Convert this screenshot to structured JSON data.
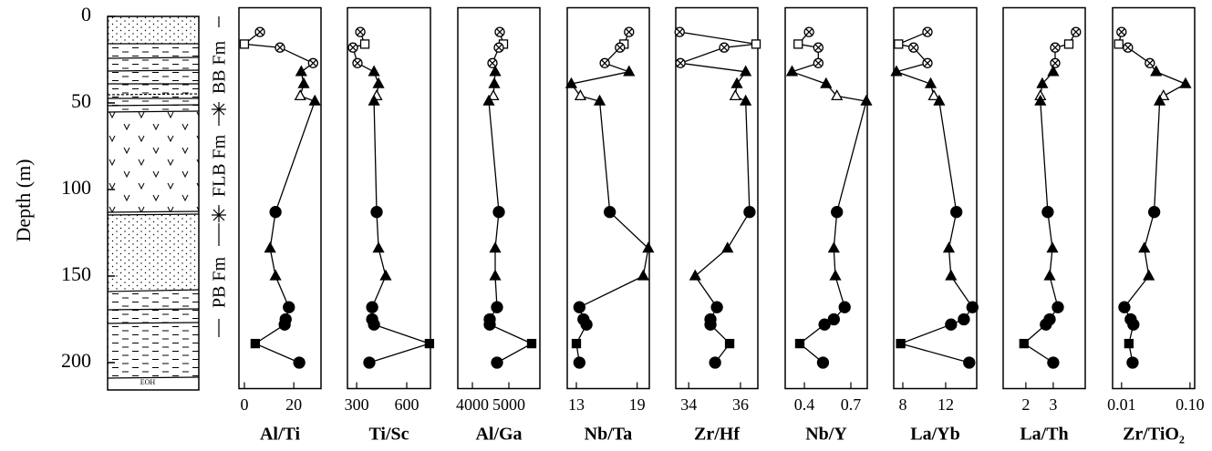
{
  "chart_data": [
    {
      "type": "line",
      "xlabel": "Al/Ti",
      "ylabel": "Depth (m)",
      "ylim": [
        -5,
        215
      ],
      "yticks": [
        0,
        50,
        100,
        150,
        200
      ],
      "xlim": [
        -2.2,
        31
      ],
      "xticks": [
        0,
        20
      ],
      "markers": [
        "circle-x",
        "square-open",
        "circle-x",
        "circle-x",
        "triangle",
        "triangle",
        "triangle-open",
        "triangle",
        "circle",
        "triangle",
        "triangle",
        "circle",
        "circle",
        "circle",
        "square",
        "circle"
      ],
      "y": [
        9,
        16,
        18,
        27,
        32,
        39,
        46,
        49,
        113,
        134,
        150,
        168,
        175,
        178,
        189,
        200
      ],
      "x": [
        6.3,
        0,
        14.4,
        27.8,
        23,
        24,
        22.6,
        28.5,
        12.6,
        10.4,
        12.6,
        18,
        16.7,
        16.3,
        4.4,
        22.2
      ]
    },
    {
      "type": "line",
      "xlabel": "Ti/Sc",
      "ylim": [
        -5,
        215
      ],
      "xlim": [
        245,
        742
      ],
      "xticks": [
        300,
        600
      ],
      "markers": [
        "circle-x",
        "square-open",
        "circle-x",
        "circle-x",
        "triangle",
        "triangle",
        "triangle-open",
        "triangle",
        "circle",
        "triangle",
        "triangle",
        "circle",
        "circle",
        "circle",
        "square",
        "circle"
      ],
      "y": [
        9,
        16,
        18,
        27,
        32,
        39,
        46,
        49,
        113,
        134,
        150,
        168,
        175,
        178,
        189,
        200
      ],
      "x": [
        322,
        349,
        278,
        305,
        404,
        431,
        420,
        404,
        420,
        431,
        474,
        393,
        393,
        404,
        736,
        376
      ]
    },
    {
      "type": "line",
      "xlabel": "Al/Ga",
      "ylim": [
        -5,
        215
      ],
      "xlim": [
        3600,
        5850
      ],
      "xticks": [
        4000,
        5000
      ],
      "markers": [
        "circle-x",
        "square-open",
        "circle-x",
        "circle-x",
        "triangle",
        "triangle",
        "triangle-open",
        "triangle",
        "circle",
        "triangle",
        "triangle",
        "circle",
        "circle",
        "circle",
        "square",
        "circle"
      ],
      "y": [
        9,
        16,
        18,
        27,
        32,
        39,
        46,
        49,
        113,
        134,
        150,
        168,
        175,
        178,
        189,
        200
      ],
      "x": [
        4750,
        4850,
        4725,
        4550,
        4625,
        4600,
        4575,
        4450,
        4725,
        4625,
        4625,
        4675,
        4475,
        4475,
        5625,
        4675
      ]
    },
    {
      "type": "line",
      "xlabel": "Nb/Ta",
      "ylim": [
        -5,
        215
      ],
      "xlim": [
        12.1,
        20.2
      ],
      "xticks": [
        13,
        19
      ],
      "markers": [
        "circle-x",
        "square-open",
        "circle-x",
        "circle-x",
        "triangle",
        "triangle",
        "triangle-open",
        "triangle",
        "circle",
        "triangle",
        "triangle",
        "circle",
        "circle",
        "circle",
        "square",
        "circle"
      ],
      "y": [
        9,
        16,
        18,
        27,
        32,
        39,
        46,
        49,
        113,
        134,
        150,
        168,
        175,
        178,
        189,
        200
      ],
      "x": [
        18.2,
        17.7,
        17.3,
        15.8,
        18.2,
        12.5,
        13.4,
        15.3,
        16.3,
        20.1,
        19.6,
        13.3,
        13.7,
        14.0,
        13.0,
        13.3
      ]
    },
    {
      "type": "line",
      "xlabel": "Zr/Hf",
      "ylim": [
        -5,
        215
      ],
      "xlim": [
        33.5,
        36.67
      ],
      "xticks": [
        34,
        36
      ],
      "markers": [
        "circle-x",
        "square-open",
        "circle-x",
        "circle-x",
        "triangle",
        "triangle",
        "triangle-open",
        "triangle",
        "circle",
        "triangle",
        "triangle",
        "circle",
        "circle",
        "circle",
        "square",
        "circle"
      ],
      "y": [
        9,
        16,
        18,
        27,
        32,
        39,
        46,
        49,
        113,
        134,
        150,
        168,
        175,
        178,
        189,
        200
      ],
      "x": [
        33.65,
        36.6,
        35.37,
        33.68,
        36.2,
        35.86,
        35.8,
        36.2,
        36.35,
        35.5,
        34.25,
        35.09,
        34.84,
        34.84,
        35.58,
        35.02
      ]
    },
    {
      "type": "line",
      "xlabel": "Nb/Y",
      "ylim": [
        -5,
        215
      ],
      "xlim": [
        0.276,
        0.806
      ],
      "xticks": [
        0.4,
        0.7
      ],
      "markers": [
        "circle-x",
        "square-open",
        "circle-x",
        "circle-x",
        "triangle",
        "triangle",
        "triangle-open",
        "triangle",
        "circle",
        "triangle",
        "triangle",
        "circle",
        "circle",
        "circle",
        "square",
        "circle"
      ],
      "y": [
        9,
        16,
        18,
        27,
        32,
        39,
        46,
        49,
        113,
        134,
        150,
        168,
        175,
        178,
        189,
        200
      ],
      "x": [
        0.43,
        0.36,
        0.49,
        0.49,
        0.32,
        0.54,
        0.61,
        0.8,
        0.61,
        0.59,
        0.6,
        0.66,
        0.59,
        0.53,
        0.37,
        0.52
      ]
    },
    {
      "type": "line",
      "xlabel": "La/Yb",
      "ylim": [
        -5,
        215
      ],
      "xlim": [
        7.15,
        14.9
      ],
      "xticks": [
        8,
        12
      ],
      "markers": [
        "circle-x",
        "square-open",
        "circle-x",
        "circle-x",
        "triangle",
        "triangle",
        "triangle-open",
        "triangle",
        "circle",
        "triangle",
        "triangle",
        "circle",
        "circle",
        "circle",
        "square",
        "circle"
      ],
      "y": [
        9,
        16,
        18,
        27,
        32,
        39,
        46,
        49,
        113,
        134,
        150,
        168,
        175,
        178,
        189,
        200
      ],
      "x": [
        10.3,
        7.6,
        9.0,
        10.3,
        7.4,
        10.6,
        10.9,
        11.4,
        13.0,
        12.3,
        12.5,
        14.5,
        13.7,
        12.5,
        7.8,
        14.2
      ]
    },
    {
      "type": "line",
      "xlabel": "La/Th",
      "ylim": [
        -5,
        215
      ],
      "xlim": [
        1.17,
        4.17
      ],
      "xticks": [
        2,
        3
      ],
      "markers": [
        "circle-x",
        "square-open",
        "circle-x",
        "circle-x",
        "triangle",
        "triangle",
        "triangle-open",
        "triangle",
        "circle",
        "triangle",
        "triangle",
        "circle",
        "circle",
        "circle",
        "square",
        "circle"
      ],
      "y": [
        9,
        16,
        18,
        27,
        32,
        39,
        46,
        49,
        113,
        134,
        150,
        168,
        175,
        178,
        189,
        200
      ],
      "x": [
        3.83,
        3.57,
        3.07,
        3.07,
        3.0,
        2.6,
        2.53,
        2.53,
        2.8,
        2.97,
        2.87,
        3.17,
        2.87,
        2.73,
        1.93,
        3.0
      ]
    },
    {
      "type": "line",
      "xlabel": "Zr/TiO₂",
      "ylim": [
        -5,
        215
      ],
      "xlim": [
        0.0074,
        0.117
      ],
      "xscale": "log",
      "xticks": [
        0.01,
        {
          "value": 0.1,
          "label": "0.10"
        }
      ],
      "markers": [
        "circle-x",
        "square-open",
        "circle-x",
        "circle-x",
        "triangle",
        "triangle",
        "triangle-open",
        "triangle",
        "circle",
        "triangle",
        "triangle",
        "circle",
        "circle",
        "circle",
        "square",
        "circle"
      ],
      "y": [
        9,
        16,
        18,
        27,
        32,
        39,
        46,
        49,
        113,
        134,
        150,
        168,
        175,
        178,
        189,
        200
      ],
      "x": [
        0.01,
        0.0091,
        0.0124,
        0.0259,
        0.032,
        0.086,
        0.041,
        0.036,
        0.03,
        0.0215,
        0.025,
        0.011,
        0.0136,
        0.0149,
        0.0128,
        0.0145
      ]
    }
  ],
  "formations": {
    "bb": "BB Fm",
    "flb": "FLB Fm",
    "pb": "PB Fm"
  },
  "lithology": {
    "eoh": "EOH"
  }
}
